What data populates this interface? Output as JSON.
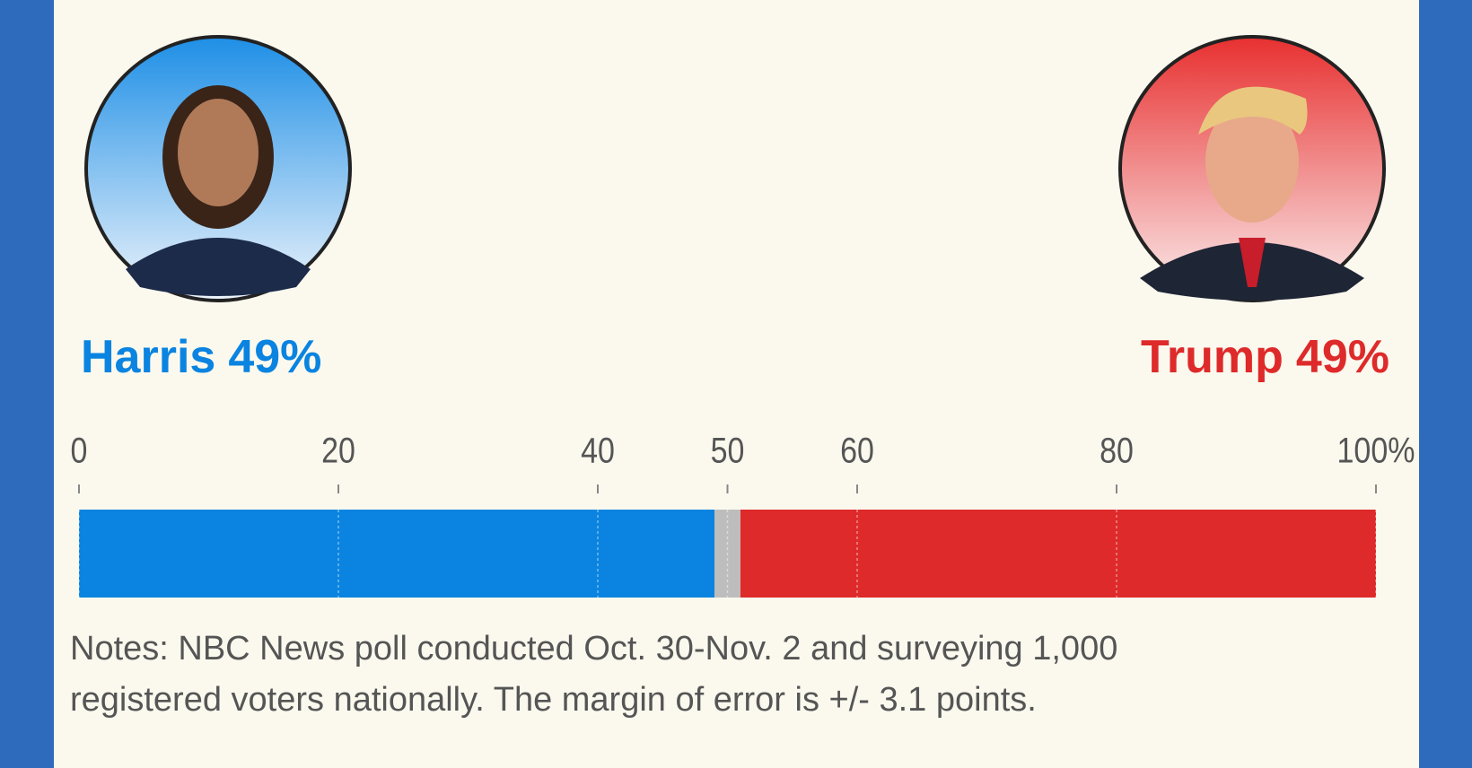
{
  "chart_data": {
    "type": "bar",
    "orientation": "horizontal",
    "stacked": true,
    "series": [
      {
        "name": "Harris",
        "color": "#0a84e0",
        "values": [
          49
        ],
        "value_labels": [
          "49%"
        ]
      },
      {
        "color": "#bdbdbd",
        "values": [
          2
        ]
      },
      {
        "name": "Trump",
        "color": "#de2a2a",
        "values": [
          49
        ],
        "value_labels": [
          "49%"
        ]
      }
    ],
    "xlim": [
      0,
      100
    ],
    "xticks": [
      0,
      20,
      40,
      50,
      60,
      80,
      {
        "value": 100,
        "label": "100%"
      }
    ],
    "grid": true,
    "notes": [
      "Notes: NBC News poll conducted Oct. 30-Nov. 2 and surveying 1,000",
      "registered voters nationally. The margin of error is +/- 3.1 points."
    ]
  }
}
